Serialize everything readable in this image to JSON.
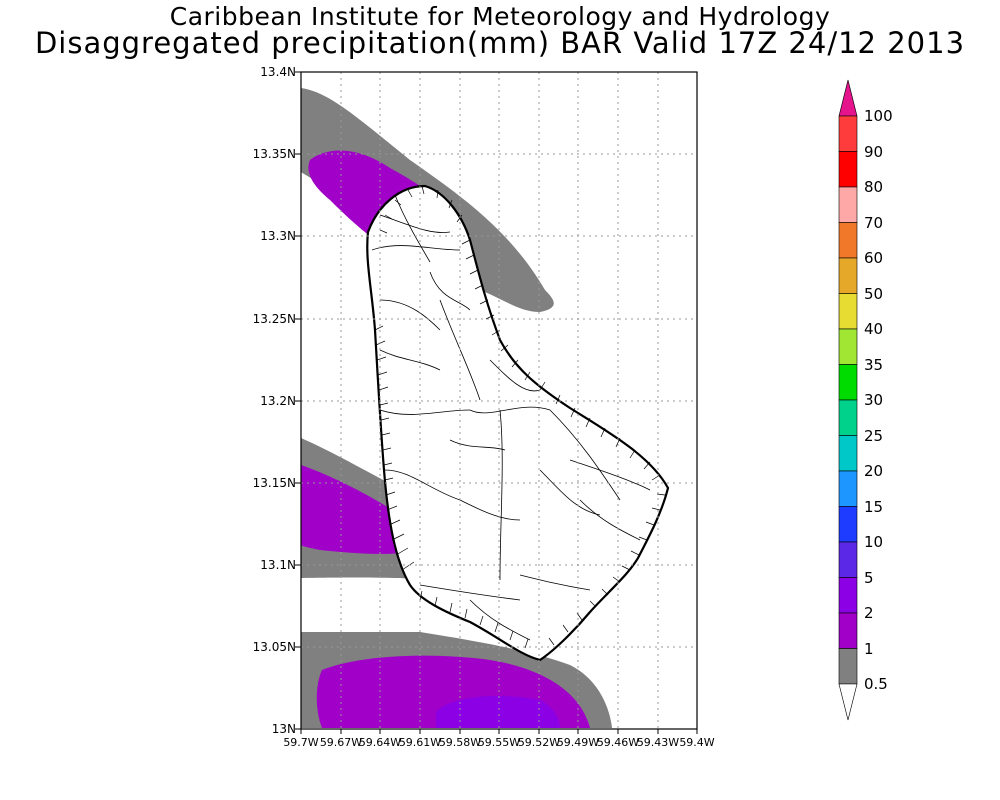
{
  "header": {
    "org": "Caribbean Institute for Meteorology and Hydrology",
    "title": "Disaggregated precipitation(mm) BAR Valid 17Z 24/12 2013"
  },
  "axes": {
    "lat_ticks": [
      "13.4N",
      "13.35N",
      "13.3N",
      "13.25N",
      "13.2N",
      "13.15N",
      "13.1N",
      "13.05N",
      "13N"
    ],
    "lon_ticks": [
      "59.7W",
      "59.67W",
      "59.64W",
      "59.61W",
      "59.58W",
      "59.55W",
      "59.52W",
      "59.49W",
      "59.46W",
      "59.43W",
      "59.4W"
    ]
  },
  "legend": {
    "labels": [
      "100",
      "90",
      "80",
      "70",
      "60",
      "50",
      "40",
      "35",
      "30",
      "25",
      "20",
      "15",
      "10",
      "5",
      "2",
      "1",
      "0.5"
    ],
    "colors": [
      "#f01e6e",
      "#ff3c3c",
      "#ff0000",
      "#ffa8a8",
      "#ff7f24",
      "#e6a828",
      "#e6dc32",
      "#a0e632",
      "#00dc00",
      "#00d28c",
      "#00c8c8",
      "#1e96ff",
      "#1e3cff",
      "#5a28e6",
      "#8c00e6",
      "#a000c8",
      "#808080"
    ],
    "bottom_arrow_color": "#ffffff",
    "top_arrow_color": "#e6148c"
  },
  "precip_colors": {
    "band_0_5_1": "#808080",
    "band_1_2": "#a000c8",
    "band_2_5": "#8c00e6"
  }
}
